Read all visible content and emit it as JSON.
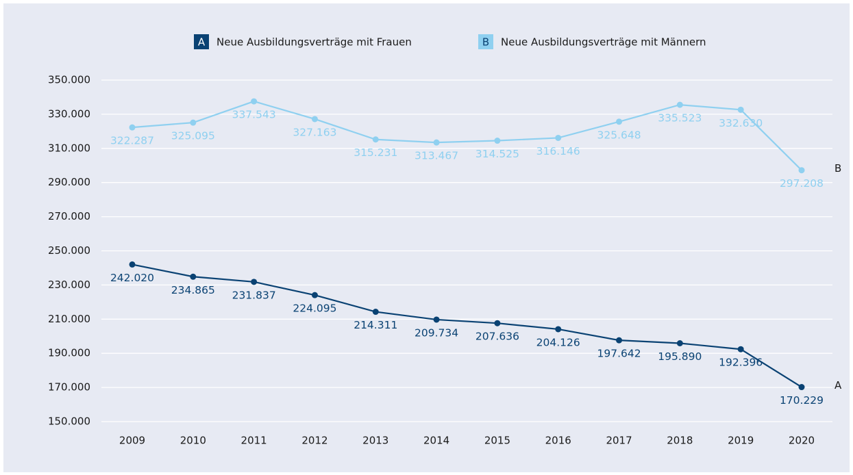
{
  "chart_data": {
    "type": "line",
    "categories": [
      "2009",
      "2010",
      "2011",
      "2012",
      "2013",
      "2014",
      "2015",
      "2016",
      "2017",
      "2018",
      "2019",
      "2020"
    ],
    "series": [
      {
        "key": "A",
        "name": "Neue Ausbildungsverträge mit Frauen",
        "color": "#0a4273",
        "values": [
          242020,
          234865,
          231837,
          224095,
          214311,
          209734,
          207636,
          204126,
          197642,
          195890,
          192396,
          170229
        ],
        "value_labels": [
          "242.020",
          "234.865",
          "231.837",
          "224.095",
          "214.311",
          "209.734",
          "207.636",
          "204.126",
          "197.642",
          "195.890",
          "192.396",
          "170.229"
        ]
      },
      {
        "key": "B",
        "name": "Neue Ausbildungsverträge mit Männern",
        "color": "#8fd0f0",
        "values": [
          322287,
          325095,
          337543,
          327163,
          315231,
          313467,
          314525,
          316146,
          325648,
          335523,
          332630,
          297208
        ],
        "value_labels": [
          "322.287",
          "325.095",
          "337.543",
          "327.163",
          "315.231",
          "313.467",
          "314.525",
          "316.146",
          "325.648",
          "335.523",
          "332.630",
          "297.208"
        ]
      }
    ],
    "ylim": [
      150000,
      350000
    ],
    "yticks": [
      {
        "value": 150000,
        "label": "150.000"
      },
      {
        "value": 170000,
        "label": "170.000"
      },
      {
        "value": 190000,
        "label": "190.000"
      },
      {
        "value": 210000,
        "label": "210.000"
      },
      {
        "value": 230000,
        "label": "230.000"
      },
      {
        "value": 250000,
        "label": "250.000"
      },
      {
        "value": 270000,
        "label": "270.000"
      },
      {
        "value": 290000,
        "label": "290.000"
      },
      {
        "value": 310000,
        "label": "310.000"
      },
      {
        "value": 330000,
        "label": "330.000"
      },
      {
        "value": 350000,
        "label": "350.000"
      }
    ],
    "grid": true,
    "legend": "top"
  }
}
